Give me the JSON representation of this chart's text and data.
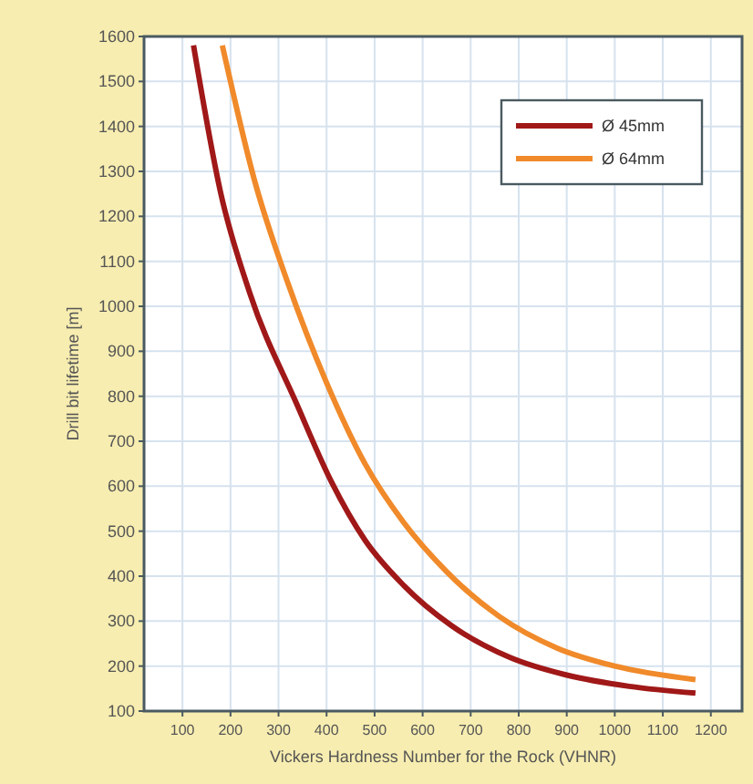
{
  "chart_data": {
    "type": "line",
    "xlabel": "Vickers Hardness Number for the Rock (VHNR)",
    "ylabel": "Drill bit lifetime [m]",
    "xlim": [
      20,
      1265
    ],
    "xticks": [
      100,
      200,
      300,
      400,
      500,
      600,
      700,
      800,
      900,
      1000,
      1100,
      1200
    ],
    "ylim": [
      100,
      1600
    ],
    "yticks": [
      100,
      200,
      300,
      400,
      500,
      600,
      700,
      800,
      900,
      1000,
      1100,
      1200,
      1300,
      1400,
      1500,
      1600
    ],
    "grid": true,
    "legend": "top right",
    "line_style": "solid",
    "series": [
      {
        "name": "Ø 45mm",
        "color": "#a01818",
        "x": [
          123,
          180,
          240,
          339,
          410,
          480,
          560,
          660,
          780,
          900,
          1030,
          1168
        ],
        "values": [
          1580,
          1250,
          1030,
          780,
          610,
          480,
          380,
          290,
          220,
          180,
          155,
          140
        ]
      },
      {
        "name": "Ø 64mm",
        "color": "#f08a2a",
        "x": [
          183,
          250,
          320,
          400,
          480,
          560,
          650,
          760,
          880,
          1000,
          1168
        ],
        "values": [
          1580,
          1280,
          1050,
          830,
          650,
          520,
          410,
          310,
          240,
          200,
          170
        ]
      }
    ]
  }
}
